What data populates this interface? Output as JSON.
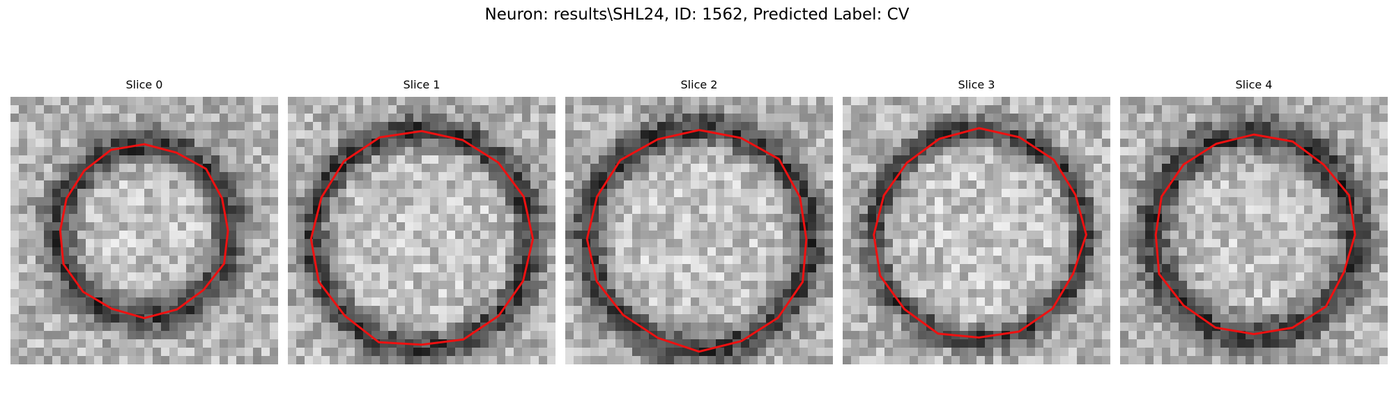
{
  "figure": {
    "title": "Neuron: results\\SHL24, ID: 1562, Predicted Label: CV",
    "contour_color": "#ee1111",
    "slices": [
      {
        "label": "Slice 0",
        "seed": 11
      },
      {
        "label": "Slice 1",
        "seed": 23
      },
      {
        "label": "Slice 2",
        "seed": 37
      },
      {
        "label": "Slice 3",
        "seed": 41
      },
      {
        "label": "Slice 4",
        "seed": 53
      }
    ]
  }
}
